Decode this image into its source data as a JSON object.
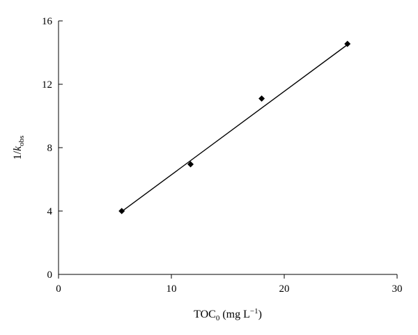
{
  "chart_data": {
    "type": "scatter",
    "title": "",
    "xlabel": {
      "main": "TOC",
      "sub": "0",
      "unit_open": " (mg L",
      "unit_sup": "−1",
      "unit_close": ")"
    },
    "ylabel": {
      "main": "1/",
      "italic": "k",
      "sub": "obs"
    },
    "xlim": [
      0,
      30
    ],
    "ylim": [
      0,
      16
    ],
    "x_ticks": [
      0,
      10,
      20,
      30
    ],
    "y_ticks": [
      0,
      4,
      8,
      12,
      16
    ],
    "grid": false,
    "legend": "none",
    "series": [
      {
        "marker": "diamond",
        "color": "#000000",
        "x": [
          5.6,
          11.7,
          18.0,
          25.6
        ],
        "y": [
          4.0,
          6.95,
          11.1,
          14.55
        ]
      }
    ],
    "trendline": {
      "type": "linear",
      "x_range": [
        5.6,
        25.6
      ],
      "y_range": [
        3.97,
        14.5
      ],
      "color": "#000000"
    }
  }
}
